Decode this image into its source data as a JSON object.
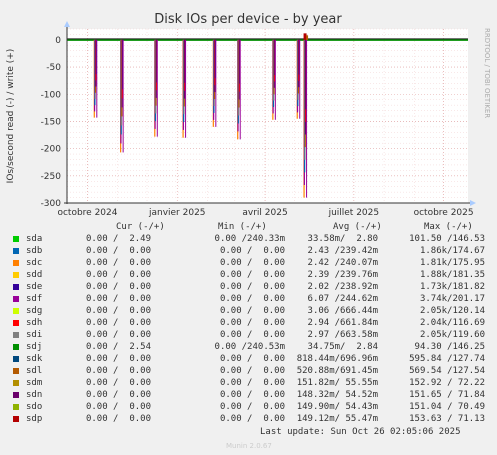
{
  "chart_data": {
    "type": "line",
    "title": "Disk IOs per device - by year",
    "ylabel": "IOs/second read (-) / write (+)",
    "ylim": [
      -300,
      20
    ],
    "yticks": [
      0,
      -50,
      -100,
      -150,
      -200,
      -250,
      -300
    ],
    "x_tick_labels": [
      "octobre 2024",
      "janvier 2025",
      "avril 2025",
      "juillet 2025",
      "octobre 2025"
    ],
    "x_tick_dates": [
      "2024-10-01",
      "2025-01-01",
      "2025-04-01",
      "2025-07-01",
      "2025-10-01"
    ],
    "x_range": [
      "2024-09-10",
      "2025-10-26"
    ],
    "spikes": [
      {
        "date": "2024-10-09",
        "read": -143
      },
      {
        "date": "2024-11-05",
        "read": -207
      },
      {
        "date": "2024-12-10",
        "read": -178
      },
      {
        "date": "2025-01-08",
        "read": -180
      },
      {
        "date": "2025-02-08",
        "read": -160
      },
      {
        "date": "2025-03-05",
        "read": -183
      },
      {
        "date": "2025-04-10",
        "read": -147
      },
      {
        "date": "2025-05-05",
        "read": -145
      },
      {
        "date": "2025-05-12",
        "read": -290
      }
    ],
    "write_bump": {
      "date": "2025-05-12",
      "write": 12
    },
    "grid": true
  },
  "side_label": "RRDTOOL / TOBI OETIKER",
  "legend": {
    "headers": {
      "cur": "Cur (-/+)",
      "min": "Min (-/+)",
      "avg": "Avg (-/+)",
      "max": "Max (-/+)"
    },
    "rows": [
      {
        "name": "sda",
        "color": "#00cc00",
        "cur": "0.00 /  2.49",
        "min": "0.00 /240.33m",
        "avg": "33.58m/  2.80",
        "max": "101.50 /146.53"
      },
      {
        "name": "sdb",
        "color": "#0066b3",
        "cur": "0.00 /  0.00",
        "min": "0.00 /  0.00",
        "avg": "2.43 /239.42m",
        "max": "1.86k/174.67"
      },
      {
        "name": "sdc",
        "color": "#ff8000",
        "cur": "0.00 /  0.00",
        "min": "0.00 /  0.00",
        "avg": "2.42 /240.07m",
        "max": "1.81k/175.95"
      },
      {
        "name": "sdd",
        "color": "#ffcc00",
        "cur": "0.00 /  0.00",
        "min": "0.00 /  0.00",
        "avg": "2.39 /239.76m",
        "max": "1.88k/181.35"
      },
      {
        "name": "sde",
        "color": "#330099",
        "cur": "0.00 /  0.00",
        "min": "0.00 /  0.00",
        "avg": "2.02 /238.92m",
        "max": "1.73k/181.82"
      },
      {
        "name": "sdf",
        "color": "#990099",
        "cur": "0.00 /  0.00",
        "min": "0.00 /  0.00",
        "avg": "6.07 /244.62m",
        "max": "3.74k/201.17"
      },
      {
        "name": "sdg",
        "color": "#ccff00",
        "cur": "0.00 /  0.00",
        "min": "0.00 /  0.00",
        "avg": "3.06 /666.44m",
        "max": "2.05k/120.14"
      },
      {
        "name": "sdh",
        "color": "#ff0000",
        "cur": "0.00 /  0.00",
        "min": "0.00 /  0.00",
        "avg": "2.94 /661.84m",
        "max": "2.04k/116.69"
      },
      {
        "name": "sdi",
        "color": "#808080",
        "cur": "0.00 /  0.00",
        "min": "0.00 /  0.00",
        "avg": "2.97 /663.58m",
        "max": "2.05k/119.60"
      },
      {
        "name": "sdj",
        "color": "#008f00",
        "cur": "0.00 /  2.54",
        "min": "0.00 /240.53m",
        "avg": "34.75m/  2.84",
        "max": "94.30 /146.25"
      },
      {
        "name": "sdk",
        "color": "#00487d",
        "cur": "0.00 /  0.00",
        "min": "0.00 /  0.00",
        "avg": "818.44m/696.96m",
        "max": "595.84 /127.74"
      },
      {
        "name": "sdl",
        "color": "#b35a00",
        "cur": "0.00 /  0.00",
        "min": "0.00 /  0.00",
        "avg": "520.88m/691.45m",
        "max": "569.54 /127.54"
      },
      {
        "name": "sdm",
        "color": "#b38f00",
        "cur": "0.00 /  0.00",
        "min": "0.00 /  0.00",
        "avg": "151.82m/ 55.55m",
        "max": "152.92 / 72.22"
      },
      {
        "name": "sdn",
        "color": "#6b006b",
        "cur": "0.00 /  0.00",
        "min": "0.00 /  0.00",
        "avg": "148.32m/ 54.52m",
        "max": "151.65 / 71.84"
      },
      {
        "name": "sdo",
        "color": "#8fb300",
        "cur": "0.00 /  0.00",
        "min": "0.00 /  0.00",
        "avg": "149.90m/ 54.43m",
        "max": "151.04 / 70.49"
      },
      {
        "name": "sdp",
        "color": "#b30000",
        "cur": "0.00 /  0.00",
        "min": "0.00 /  0.00",
        "avg": "149.12m/ 55.47m",
        "max": "153.63 / 71.13"
      }
    ]
  },
  "footer": {
    "last_update": "Last update: Sun Oct 26 02:05:06 2025",
    "version": "Munin 2.0.67"
  }
}
